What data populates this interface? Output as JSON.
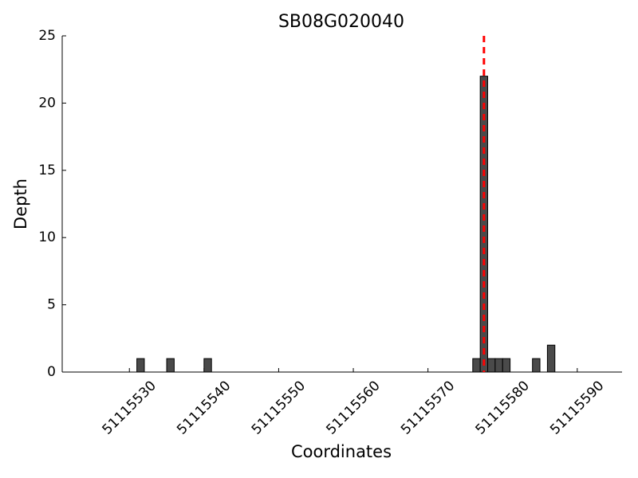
{
  "chart_data": {
    "type": "bar",
    "title": "SB08G020040",
    "x_label": "Coordinates",
    "y_label": "Depth",
    "x": [
      51115531,
      51115535,
      51115540,
      51115576,
      51115577,
      51115578,
      51115579,
      51115580,
      51115584,
      51115586
    ],
    "values": [
      1,
      1,
      1,
      1,
      22,
      1,
      1,
      1,
      1,
      2
    ],
    "color": "#4a4a4a",
    "xlim": [
      51115521,
      51115596
    ],
    "xticks": [
      51115530,
      51115540,
      51115550,
      51115560,
      51115570,
      51115580,
      51115590
    ],
    "ylim": [
      0,
      25
    ],
    "yticks": [
      0,
      5,
      10,
      15,
      20,
      25
    ],
    "vline": {
      "x": 51115577.5,
      "color": "#ff0000"
    },
    "grid": false
  }
}
